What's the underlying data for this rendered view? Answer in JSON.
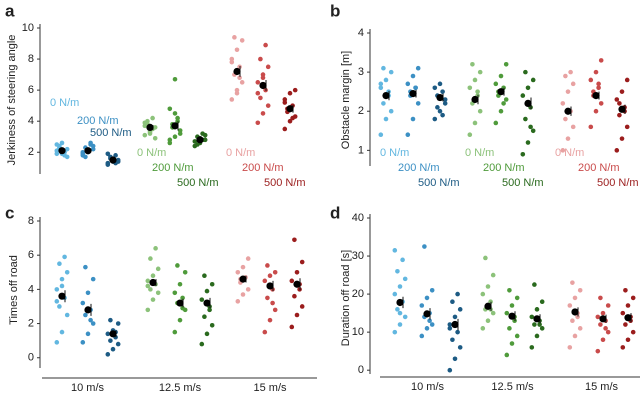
{
  "chart_data": [
    {
      "type": "strip",
      "panel": "a",
      "ylabel": "Jerkiness of steering angle",
      "ylim": [
        0.6,
        10
      ],
      "yticks": [
        2,
        4,
        6,
        8,
        10
      ],
      "groups": [
        {
          "name": "0 N/m",
          "color": "#62b7e0",
          "values": [
            1.9,
            2.0,
            2.2,
            2.4,
            1.8,
            2.1,
            2.6,
            1.7,
            2.3,
            2.0,
            2.5,
            1.9
          ],
          "mean": 2.1,
          "sem": 0.1
        },
        {
          "name": "200 N/m",
          "color": "#3c90c4",
          "values": [
            1.8,
            2.0,
            2.2,
            2.3,
            2.5,
            1.9,
            2.1,
            2.4,
            1.7,
            2.6,
            2.0
          ],
          "mean": 2.1,
          "sem": 0.1
        },
        {
          "name": "500 N/m",
          "color": "#1d5b84",
          "values": [
            1.3,
            1.4,
            1.5,
            1.6,
            1.8,
            1.2,
            1.5,
            1.4,
            1.7,
            1.3,
            1.9
          ],
          "mean": 1.5,
          "sem": 0.08
        },
        {
          "name": "0 N/m",
          "color": "#8cc27a",
          "values": [
            3.1,
            3.4,
            3.6,
            3.8,
            4.2,
            3.9,
            3.3,
            2.9,
            4.0,
            3.5,
            3.7,
            3.2
          ],
          "mean": 3.6,
          "sem": 0.15
        },
        {
          "name": "200 N/m",
          "color": "#4f9b3b",
          "values": [
            2.6,
            3.0,
            3.4,
            3.8,
            4.2,
            4.8,
            6.7,
            3.2,
            3.6,
            4.0,
            2.8,
            4.5
          ],
          "mean": 3.7,
          "sem": 0.3
        },
        {
          "name": "500 N/m",
          "color": "#2a6a1e",
          "values": [
            2.4,
            2.6,
            2.8,
            3.0,
            3.2,
            2.7,
            2.9,
            3.1,
            2.5,
            2.8
          ],
          "mean": 2.8,
          "sem": 0.1
        },
        {
          "name": "0 N/m",
          "color": "#e8a2a2",
          "values": [
            5.4,
            6.0,
            6.5,
            7.0,
            7.5,
            8.0,
            8.6,
            9.2,
            9.4,
            6.8,
            7.8,
            5.8
          ],
          "mean": 7.2,
          "sem": 0.35
        },
        {
          "name": "200 N/m",
          "color": "#c94b4b",
          "values": [
            3.9,
            4.5,
            5.0,
            5.5,
            6.0,
            6.5,
            7.0,
            7.5,
            8.0,
            8.9,
            5.8,
            6.8
          ],
          "mean": 6.3,
          "sem": 0.35
        },
        {
          "name": "500 N/m",
          "color": "#9b1d1d",
          "values": [
            3.5,
            4.0,
            4.3,
            4.6,
            5.0,
            5.4,
            5.8,
            6.0,
            4.8,
            4.2,
            5.2
          ],
          "mean": 4.8,
          "sem": 0.25
        }
      ]
    },
    {
      "type": "strip",
      "panel": "b",
      "ylabel": "Obstacle margin [m]",
      "ylim": [
        0.6,
        4
      ],
      "yticks": [
        1,
        2,
        3,
        4
      ],
      "groups": [
        {
          "name": "0 N/m",
          "color": "#62b7e0",
          "values": [
            1.4,
            1.8,
            2.0,
            2.2,
            2.4,
            2.6,
            2.8,
            3.0,
            3.1,
            2.5,
            2.7
          ],
          "mean": 2.4,
          "sem": 0.12
        },
        {
          "name": "200 N/m",
          "color": "#3c90c4",
          "values": [
            1.4,
            1.8,
            2.2,
            2.4,
            2.6,
            2.7,
            2.9,
            3.1,
            2.5,
            2.6
          ],
          "mean": 2.45,
          "sem": 0.1
        },
        {
          "name": "500 N/m",
          "color": "#1d5b84",
          "values": [
            1.8,
            2.0,
            2.2,
            2.4,
            2.5,
            2.6,
            2.7,
            2.3,
            2.1,
            1.9
          ],
          "mean": 2.35,
          "sem": 0.1
        },
        {
          "name": "0 N/m",
          "color": "#8cc27a",
          "values": [
            1.4,
            1.7,
            2.0,
            2.2,
            2.4,
            2.6,
            2.8,
            3.0,
            3.2,
            2.5
          ],
          "mean": 2.3,
          "sem": 0.12
        },
        {
          "name": "200 N/m",
          "color": "#4f9b3b",
          "values": [
            1.7,
            2.0,
            2.3,
            2.5,
            2.6,
            2.7,
            2.9,
            3.2,
            2.4,
            2.2
          ],
          "mean": 2.5,
          "sem": 0.1
        },
        {
          "name": "500 N/m",
          "color": "#2a6a1e",
          "values": [
            0.9,
            1.2,
            1.5,
            1.8,
            2.1,
            2.4,
            2.6,
            2.8,
            3.0,
            1.6
          ],
          "mean": 2.2,
          "sem": 0.15
        },
        {
          "name": "0 N/m",
          "color": "#e8a2a2",
          "values": [
            1.0,
            1.3,
            1.6,
            1.8,
            2.0,
            2.2,
            2.5,
            2.7,
            2.9,
            3.0
          ],
          "mean": 2.0,
          "sem": 0.12
        },
        {
          "name": "200 N/m",
          "color": "#c94b4b",
          "values": [
            1.6,
            2.0,
            2.2,
            2.4,
            2.6,
            2.8,
            3.0,
            3.3,
            2.5,
            2.7
          ],
          "mean": 2.4,
          "sem": 0.1
        },
        {
          "name": "500 N/m",
          "color": "#9b1d1d",
          "values": [
            1.0,
            1.3,
            1.6,
            1.9,
            2.1,
            2.3,
            2.5,
            2.8,
            2.2,
            2.0
          ],
          "mean": 2.05,
          "sem": 0.12
        }
      ]
    },
    {
      "type": "strip",
      "panel": "c",
      "ylabel": "Times off road",
      "ylim": [
        -0.6,
        8
      ],
      "yticks": [
        0,
        2,
        4,
        6,
        8
      ],
      "categories": [
        "10 m/s",
        "12.5 m/s",
        "15 m/s"
      ],
      "groups": [
        {
          "color": "#62b7e0",
          "values": [
            0.9,
            1.5,
            2.5,
            3.0,
            3.5,
            4.0,
            4.6,
            5.0,
            5.5,
            5.9,
            3.3,
            4.2
          ],
          "mean": 3.6,
          "sem": 0.35
        },
        {
          "color": "#3c90c4",
          "values": [
            0.9,
            1.4,
            2.0,
            2.5,
            2.8,
            3.2,
            3.8,
            4.6,
            5.3,
            2.2
          ],
          "mean": 2.8,
          "sem": 0.35
        },
        {
          "color": "#1d5b84",
          "values": [
            0.2,
            0.5,
            0.8,
            1.0,
            1.2,
            1.4,
            1.6,
            2.0,
            2.2,
            1.5
          ],
          "mean": 1.4,
          "sem": 0.2
        },
        {
          "color": "#8cc27a",
          "values": [
            2.8,
            3.4,
            3.8,
            4.0,
            4.3,
            4.5,
            4.8,
            5.2,
            5.8,
            6.4,
            4.2
          ],
          "mean": 4.4,
          "sem": 0.2
        },
        {
          "color": "#4f9b3b",
          "values": [
            1.5,
            2.2,
            2.8,
            3.2,
            3.5,
            3.8,
            4.3,
            5.0,
            5.4,
            2.9
          ],
          "mean": 3.2,
          "sem": 0.25
        },
        {
          "color": "#2a6a1e",
          "values": [
            0.8,
            1.4,
            1.9,
            2.4,
            3.0,
            3.4,
            3.9,
            4.3,
            4.8,
            2.8
          ],
          "mean": 3.2,
          "sem": 0.3
        },
        {
          "color": "#e8a2a2",
          "values": [
            3.3,
            3.7,
            4.0,
            4.4,
            4.7,
            5.0,
            5.3,
            5.8,
            4.6
          ],
          "mean": 4.6,
          "sem": 0.2
        },
        {
          "color": "#c94b4b",
          "values": [
            1.5,
            2.2,
            2.8,
            3.5,
            4.0,
            4.5,
            4.8,
            5.0,
            5.4,
            3.2
          ],
          "mean": 4.2,
          "sem": 0.3
        },
        {
          "color": "#9b1d1d",
          "values": [
            1.8,
            2.5,
            3.0,
            3.6,
            4.0,
            4.5,
            5.0,
            5.6,
            6.9,
            4.3
          ],
          "mean": 4.3,
          "sem": 0.35
        }
      ]
    },
    {
      "type": "strip",
      "panel": "d",
      "ylabel": "Duration off road [s]",
      "ylim": [
        -1,
        40
      ],
      "yticks": [
        0,
        10,
        20,
        30,
        40
      ],
      "categories": [
        "10 m/s",
        "12.5 m/s",
        "15 m/s"
      ],
      "groups": [
        {
          "color": "#62b7e0",
          "values": [
            10,
            12,
            14,
            16,
            18,
            20,
            22,
            24,
            26,
            29,
            31.5,
            15
          ],
          "mean": 17.8,
          "sem": 1.5
        },
        {
          "color": "#3c90c4",
          "values": [
            9,
            11,
            12,
            14,
            15,
            17,
            19,
            21,
            32.5,
            13
          ],
          "mean": 14.8,
          "sem": 1.5
        },
        {
          "color": "#1d5b84",
          "values": [
            0,
            3,
            6,
            8,
            10,
            12,
            14,
            16,
            18,
            20,
            11
          ],
          "mean": 12,
          "sem": 1.5
        },
        {
          "color": "#8cc27a",
          "values": [
            11,
            13,
            15,
            16,
            18,
            20,
            22,
            25,
            29.5,
            16
          ],
          "mean": 16.8,
          "sem": 1.2
        },
        {
          "color": "#4f9b3b",
          "values": [
            4,
            7,
            9,
            11,
            13,
            15,
            17,
            19,
            21,
            14
          ],
          "mean": 14.2,
          "sem": 1.3
        },
        {
          "color": "#2a6a1e",
          "values": [
            6,
            9,
            11,
            12,
            13,
            14,
            16,
            18,
            22.5,
            12
          ],
          "mean": 13.5,
          "sem": 1.2
        },
        {
          "color": "#e8a2a2",
          "values": [
            6,
            9,
            11,
            13,
            15,
            17,
            19,
            21,
            23,
            14
          ],
          "mean": 15.3,
          "sem": 1.2
        },
        {
          "color": "#c94b4b",
          "values": [
            5,
            8,
            10,
            12,
            13,
            14,
            15,
            17,
            19,
            11
          ],
          "mean": 13.5,
          "sem": 1.1
        },
        {
          "color": "#9b1d1d",
          "values": [
            6,
            8,
            10,
            12,
            13,
            15,
            17,
            19,
            21,
            14
          ],
          "mean": 13.8,
          "sem": 1.2
        }
      ]
    }
  ]
}
